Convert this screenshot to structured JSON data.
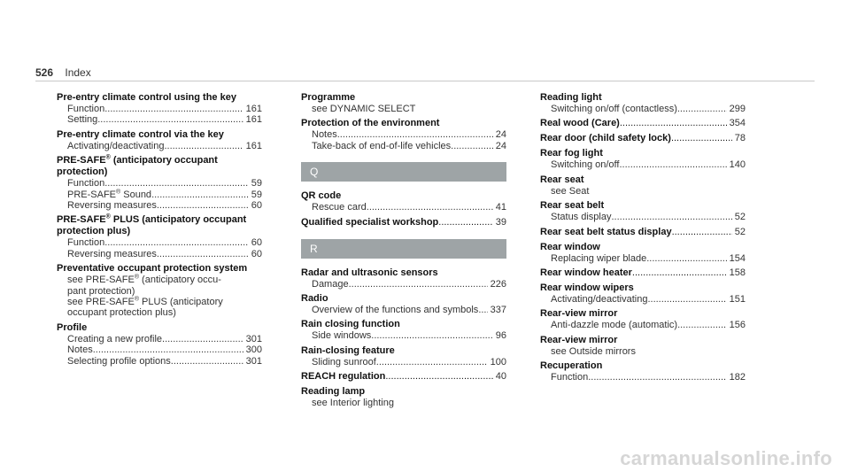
{
  "header": {
    "page_number": "526",
    "section": "Index"
  },
  "col1": {
    "e1_term": "Pre-entry climate control using the key",
    "e1_s1": "Function",
    "e1_p1": "161",
    "e1_s2": "Setting",
    "e1_p2": "161",
    "e2_term": "Pre-entry climate control via the key",
    "e2_s1": "Activating/deactivating",
    "e2_p1": "161",
    "e3_term_a": "PRE-SAFE",
    "e3_term_b": " (anticipatory occupant protection)",
    "e3_s1": "Function",
    "e3_p1": "59",
    "e3_s2a": "PRE-SAFE",
    "e3_s2b": " Sound",
    "e3_p2": "59",
    "e3_s3": "Reversing measures",
    "e3_p3": "60",
    "e4_term_a": "PRE-SAFE",
    "e4_term_b": " PLUS (anticipatory occupant protection plus)",
    "e4_s1": "Function",
    "e4_p1": "60",
    "e4_s2": "Reversing measures",
    "e4_p2": "60",
    "e5_term": "Preventative occupant protection system",
    "e5_l1a": "see PRE-SAFE",
    "e5_l1b": " (anticipatory occu-",
    "e5_l2": "pant protection)",
    "e5_l3a": "see PRE-SAFE",
    "e5_l3b": " PLUS (anticipatory",
    "e5_l4": "occupant protection plus)",
    "e6_term": "Profile",
    "e6_s1": "Creating a new profile",
    "e6_p1": "301",
    "e6_s2": "Notes",
    "e6_p2": "300",
    "e6_s3": "Selecting profile options",
    "e6_p3": "301",
    "reg": "®"
  },
  "col2": {
    "p1_term": "Programme",
    "p1_see": "see DYNAMIC SELECT",
    "p2_term": "Protection of the environment",
    "p2_s1": "Notes",
    "p2_p1": "24",
    "p2_s2": "Take-back of end-of-life vehicles",
    "p2_p2": "24",
    "q_letter": "Q",
    "q1_term": "QR code",
    "q1_s1": "Rescue card",
    "q1_p1": "41",
    "q2_term": "Qualified specialist workshop",
    "q2_p": "39",
    "r_letter": "R",
    "r1_term": "Radar and ultrasonic sensors",
    "r1_s1": "Damage",
    "r1_p1": "226",
    "r2_term": "Radio",
    "r2_s1": "Overview of the functions and symbols",
    "r2_p1": "337",
    "r3_term": "Rain closing function",
    "r3_s1": "Side windows",
    "r3_p1": "96",
    "r4_term": "Rain-closing feature",
    "r4_s1": "Sliding sunroof",
    "r4_p1": "100",
    "r5_term": "REACH regulation",
    "r5_p": "40",
    "r6_term": "Reading lamp",
    "r6_see": "see Interior lighting"
  },
  "col3": {
    "a_term": "Reading light",
    "a_s1": "Switching on/off (contactless)",
    "a_p1": "299",
    "b_term": "Real wood (Care)",
    "b_p": "354",
    "c_term": "Rear door (child safety lock)",
    "c_p": "78",
    "d_term": "Rear fog light",
    "d_s1": "Switching on/off",
    "d_p1": "140",
    "e_term": "Rear seat",
    "e_see": "see Seat",
    "f_term": "Rear seat belt",
    "f_s1": "Status display",
    "f_p1": "52",
    "g_term": "Rear seat belt status display",
    "g_p": "52",
    "h_term": "Rear window",
    "h_s1": "Replacing wiper blade",
    "h_p1": "154",
    "i_term": "Rear window heater",
    "i_p": "158",
    "j_term": "Rear window wipers",
    "j_s1": "Activating/deactivating",
    "j_p1": "151",
    "k_term": "Rear-view mirror",
    "k_s1": "Anti-dazzle mode (automatic)",
    "k_p1": "156",
    "l_term": "Rear-view mirror",
    "l_see": "see Outside mirrors",
    "m_term": "Recuperation",
    "m_s1": "Function",
    "m_p1": "182"
  },
  "watermark": "carmanualsonline.info"
}
